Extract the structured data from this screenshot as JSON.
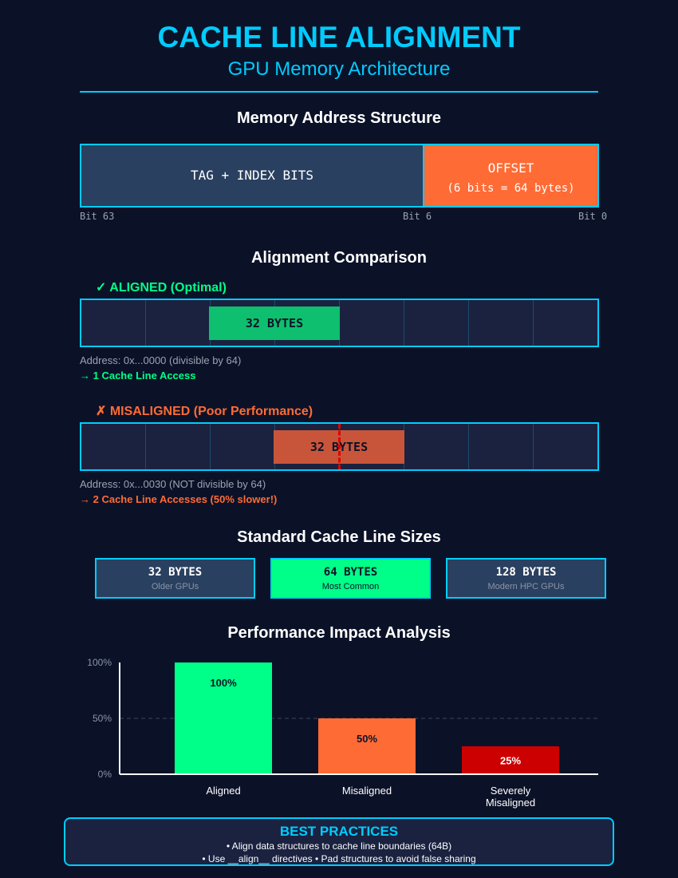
{
  "header": {
    "title": "CACHE LINE ALIGNMENT",
    "subtitle": "GPU Memory Architecture"
  },
  "address": {
    "heading": "Memory Address Structure",
    "tag_label": "TAG + INDEX BITS",
    "offset_label": "OFFSET",
    "offset_detail": "(6 bits = 64 bytes)",
    "bit_high": "Bit 63",
    "bit_mid": "Bit 6",
    "bit_low": "Bit 0",
    "tag_color": "#2a4060",
    "offset_color": "#ff6b35"
  },
  "comparison": {
    "heading": "Alignment Comparison",
    "aligned": {
      "label": "✓ ALIGNED (Optimal)",
      "chunk": "32 BYTES",
      "address": "Address: 0x...0000 (divisible by 64)",
      "result": "→ 1 Cache Line Access",
      "color": "#0dbf6e"
    },
    "misaligned": {
      "label": "✗ MISALIGNED (Poor Performance)",
      "chunk": "32 BYTES",
      "address": "Address: 0x...0030 (NOT divisible by 64)",
      "result": "→ 2 Cache Line Accesses (50% slower!)",
      "color": "#c8553a",
      "boundary_color": "#e00000"
    }
  },
  "sizes": {
    "heading": "Standard Cache Line Sizes",
    "items": [
      {
        "value": "32 BYTES",
        "desc": "Older GPUs",
        "highlight": false
      },
      {
        "value": "64 BYTES",
        "desc": "Most Common",
        "highlight": true
      },
      {
        "value": "128 BYTES",
        "desc": "Modern HPC GPUs",
        "highlight": false
      }
    ],
    "highlight_color": "#00ff88"
  },
  "performance": {
    "heading": "Performance Impact Analysis"
  },
  "chart_data": {
    "type": "bar",
    "categories": [
      "Aligned",
      "Misaligned",
      "Severely Misaligned"
    ],
    "values": [
      100,
      50,
      25
    ],
    "value_labels": [
      "100%",
      "50%",
      "25%"
    ],
    "colors": [
      "#00ff88",
      "#ff6b35",
      "#cc0000"
    ],
    "ylim": [
      0,
      100
    ],
    "yticks": [
      "0%",
      "50%",
      "100%"
    ],
    "ytick_values": [
      0,
      50,
      100
    ],
    "grid": "dashed line at 50%"
  },
  "best_practices": {
    "title": "BEST PRACTICES",
    "line1": "• Align data structures to cache line boundaries (64B)",
    "line2": "• Use __align__ directives • Pad structures to avoid false sharing"
  }
}
